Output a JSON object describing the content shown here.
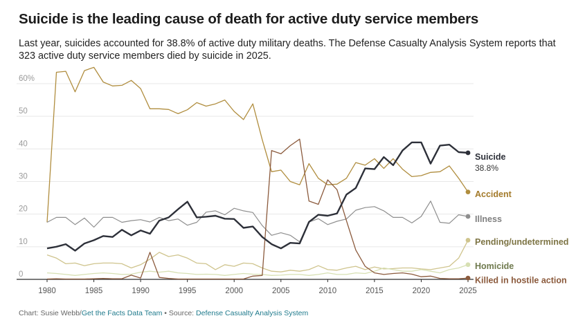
{
  "header": {
    "title": "Suicide is the leading cause of death for active duty service members",
    "subtitle": "Last year, suicides accounted for 38.8% of active duty military deaths. The Defense Casualty Analysis System reports that 323 active duty service members died by suicide in 2025."
  },
  "footer": {
    "credit_prefix": "Chart: Susie Webb/",
    "team": "Get the Facts Data Team",
    "separator": " • Source: ",
    "source": "Defense Casualty Analysis System"
  },
  "chart_data": {
    "type": "line",
    "x": [
      1980,
      1981,
      1982,
      1983,
      1984,
      1985,
      1986,
      1987,
      1988,
      1989,
      1990,
      1991,
      1992,
      1993,
      1994,
      1995,
      1996,
      1997,
      1998,
      1999,
      2000,
      2001,
      2002,
      2003,
      2004,
      2005,
      2006,
      2007,
      2008,
      2009,
      2010,
      2011,
      2012,
      2013,
      2014,
      2015,
      2016,
      2017,
      2018,
      2019,
      2020,
      2021,
      2022,
      2023,
      2024,
      2025
    ],
    "ylim": [
      0,
      60
    ],
    "yticks": [
      0,
      10,
      20,
      30,
      40,
      50,
      60
    ],
    "ytick_labels": [
      "0",
      "10",
      "20",
      "30",
      "40",
      "50",
      "60%"
    ],
    "xticks": [
      1980,
      1985,
      1990,
      1995,
      2000,
      2005,
      2010,
      2015,
      2020,
      2025
    ],
    "grid": true,
    "series": [
      {
        "name": "Accident",
        "color": "#b08d3e",
        "weight": 1.3,
        "values": [
          17.5,
          63.5,
          63.8,
          57.5,
          64,
          65,
          60.5,
          59.3,
          59.5,
          61,
          58.5,
          52.3,
          52.3,
          52.1,
          50.8,
          52,
          54.2,
          53.1,
          53.8,
          55,
          51.5,
          49,
          53.8,
          42.8,
          33,
          33.5,
          30,
          29,
          35.5,
          31,
          29,
          29.2,
          31,
          35.8,
          35,
          37,
          34,
          37,
          33.8,
          31.5,
          31.8,
          32.8,
          33,
          34.8,
          31,
          26.8
        ]
      },
      {
        "name": "Suicide",
        "value_label": "38.8%",
        "color": "#2d3039",
        "weight": 2.4,
        "values": [
          9.5,
          10,
          10.8,
          8.8,
          11,
          12,
          13.3,
          13,
          15.2,
          13.5,
          15,
          14,
          18,
          19,
          21.5,
          23.8,
          19,
          19.2,
          19.5,
          18.6,
          18.5,
          15.8,
          16.2,
          13,
          10.8,
          9.5,
          11.2,
          11,
          17.6,
          19.8,
          19.5,
          20.2,
          26,
          28,
          34,
          33.8,
          37.5,
          35,
          39.5,
          42,
          42,
          35.5,
          41,
          41.3,
          39,
          38.8
        ]
      },
      {
        "name": "Illness",
        "color": "#8e8e8e",
        "weight": 1.2,
        "values": [
          17.5,
          19,
          19,
          16.8,
          18.8,
          16,
          19,
          19,
          17.5,
          18,
          18.3,
          17.6,
          19,
          18,
          18.5,
          16.6,
          17.5,
          20.6,
          21,
          19.8,
          21.8,
          21,
          20.5,
          16.5,
          13.5,
          14.3,
          13.5,
          11.5,
          17.6,
          18.6,
          16.8,
          17.8,
          18.5,
          21.2,
          22,
          22.3,
          21,
          19,
          19,
          17.3,
          19.3,
          24,
          17.5,
          17.2,
          19.8,
          19.3
        ]
      },
      {
        "name": "Pending/undetermined",
        "color": "#cfc48d",
        "weight": 1.3,
        "values": [
          7.5,
          6.5,
          4.8,
          5,
          4.2,
          4.8,
          5,
          5,
          4.8,
          3.5,
          4.5,
          6.2,
          8.3,
          7,
          7.5,
          6.5,
          5,
          4.8,
          3,
          4.5,
          4,
          5,
          4.8,
          3.5,
          2.5,
          2.3,
          2.8,
          2.5,
          3,
          4.2,
          3,
          2.8,
          3.5,
          4,
          3,
          3.8,
          3.2,
          3.3,
          3.5,
          3.5,
          3.2,
          3,
          3.5,
          4,
          6.5,
          12
        ]
      },
      {
        "name": "Homicide",
        "color": "#d7e0b3",
        "weight": 1.3,
        "values": [
          2,
          1.8,
          1.5,
          1.2,
          1.5,
          1.8,
          2,
          1.8,
          1.5,
          1.6,
          2.2,
          2.5,
          2.2,
          2.5,
          2,
          1.8,
          1.5,
          1.6,
          1.5,
          1.2,
          1.5,
          1.8,
          1.6,
          1.5,
          1.2,
          1.3,
          1.5,
          1.5,
          1.2,
          1.5,
          2,
          1.5,
          1.5,
          2,
          1.8,
          2.5,
          3.5,
          3,
          2.5,
          2.5,
          3,
          2.5,
          2,
          3,
          3.5,
          4.5
        ]
      },
      {
        "name": "Killed in hostile action",
        "color": "#8b5a3c",
        "weight": 1.3,
        "values": [
          0.1,
          0.2,
          0.1,
          0.1,
          0.1,
          0.2,
          0.3,
          0.2,
          0.2,
          1.3,
          0.4,
          8.3,
          0.6,
          0.3,
          0.1,
          0.1,
          0.1,
          0.1,
          0.1,
          0.1,
          0.1,
          0.1,
          1,
          1.2,
          39.5,
          38.5,
          41,
          43,
          24,
          23,
          30.5,
          27.5,
          18,
          9,
          4,
          2,
          1.5,
          1.8,
          2,
          1.6,
          0.8,
          1,
          0.3,
          0.2,
          0.2,
          0.4
        ]
      }
    ],
    "end_labels": [
      "Suicide",
      "Accident",
      "Illness",
      "Pending/undetermined",
      "Homicide",
      "Killed in hostile action"
    ]
  }
}
